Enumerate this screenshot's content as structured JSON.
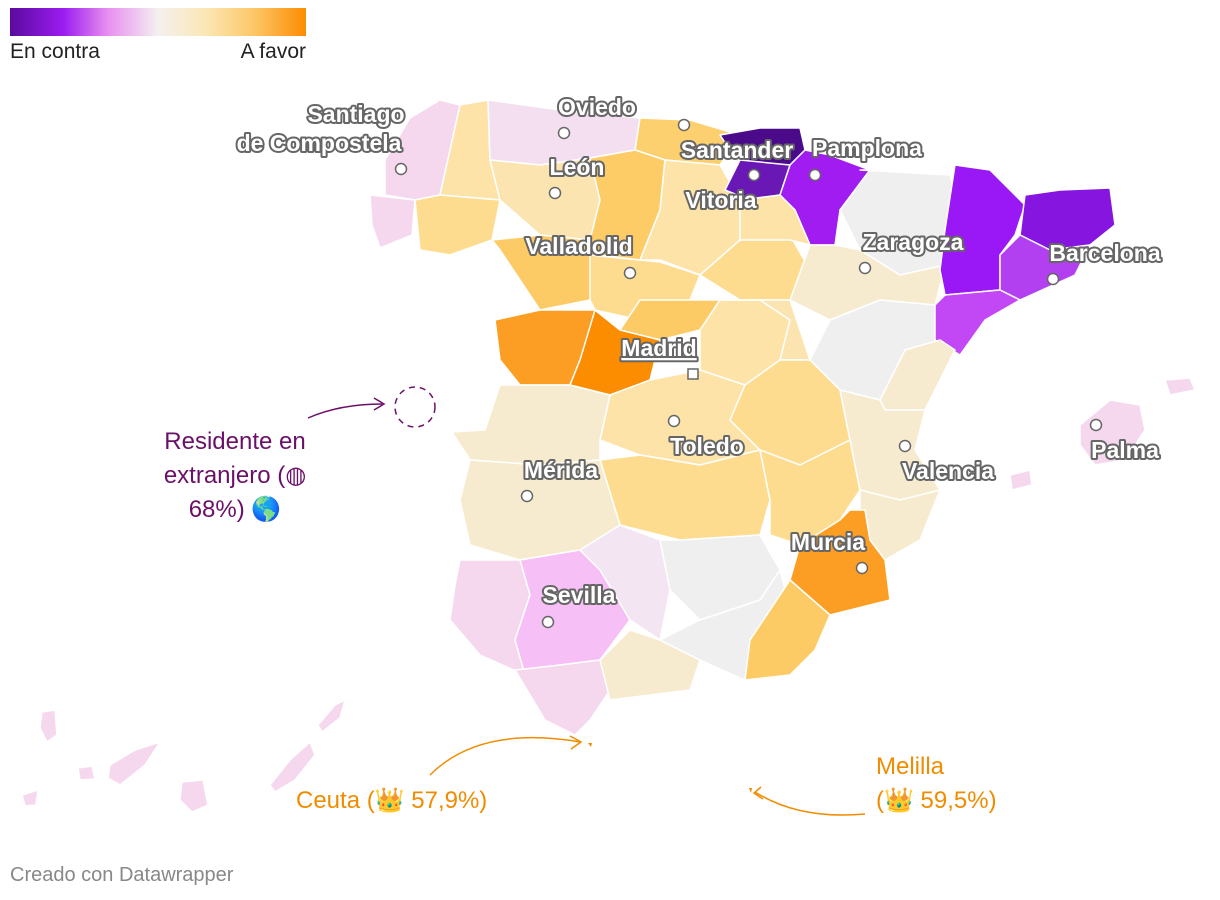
{
  "legend": {
    "left_label": "En contra",
    "right_label": "A favor"
  },
  "colors": {
    "strong_against": "#5a0a9e",
    "against": "#9b1cf0",
    "mild_against": "#f5c0f5",
    "neutral": "#efefef",
    "mild_favor": "#fbe7b5",
    "favor": "#fdc86a",
    "strong_favor": "#fc8c00",
    "annotation_purple": "#6b1068",
    "annotation_orange": "#f08c00"
  },
  "cities": {
    "santiago": "Santiago",
    "santiago2": "de Compostela",
    "oviedo": "Oviedo",
    "leon": "León",
    "santander": "Santander",
    "pamplona": "Pamplona",
    "vitoria": "Vitoria",
    "valladolid": "Valladolid",
    "zaragoza": "Zaragoza",
    "barcelona": "Barcelona",
    "madrid": "Madrid",
    "toledo": "Toledo",
    "merida": "Mérida",
    "valencia": "Valencia",
    "palma": "Palma",
    "murcia": "Murcia",
    "sevilla": "Sevilla"
  },
  "annotations": {
    "residente_1": "Residente en",
    "residente_2": "extranjero (◍",
    "residente_3": "68%) 🌎",
    "ceuta": "Ceuta (👑 57,9%)",
    "melilla_1": "Melilla",
    "melilla_2": "(👑 59,5%)"
  },
  "credit": "Creado con Datawrapper"
}
